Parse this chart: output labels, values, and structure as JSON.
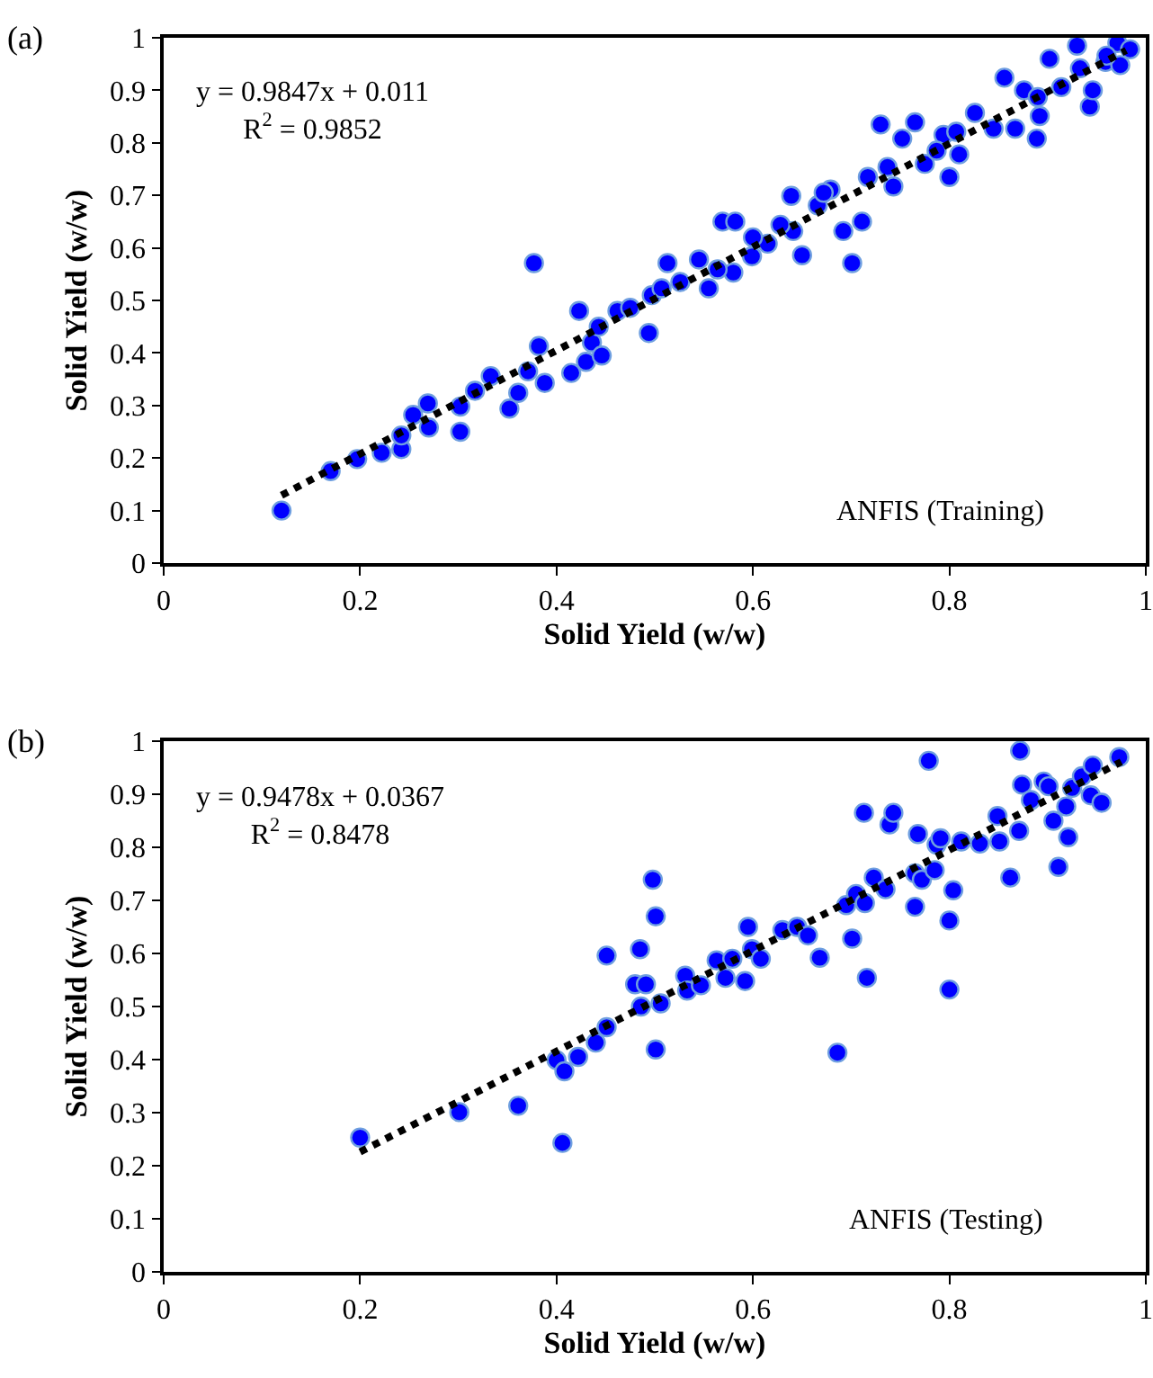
{
  "chart_data": [
    {
      "type": "scatter",
      "title": "(a)",
      "xlabel": "Solid Yield (w/w)",
      "ylabel": "Solid Yield (w/w)",
      "xlim": [
        0,
        1
      ],
      "ylim": [
        0,
        1
      ],
      "xticks": [
        0,
        0.2,
        0.4,
        0.6,
        0.8,
        1
      ],
      "yticks": [
        0,
        0.1,
        0.2,
        0.3,
        0.4,
        0.5,
        0.6,
        0.7,
        0.8,
        0.9,
        1
      ],
      "marker": "circle",
      "annotations": [
        "y = 0.9847x + 0.011\nR$^{2}$ = 0.9852",
        "ANFIS (Training)"
      ],
      "series": [
        {
          "color": "#0000ff",
          "x": [
            0.12,
            0.17,
            0.197,
            0.222,
            0.242,
            0.242,
            0.254,
            0.269,
            0.27,
            0.302,
            0.302,
            0.317,
            0.333,
            0.352,
            0.361,
            0.371,
            0.377,
            0.382,
            0.388,
            0.415,
            0.423,
            0.43,
            0.436,
            0.446,
            0.462,
            0.475,
            0.494,
            0.497,
            0.513,
            0.526,
            0.545,
            0.555,
            0.569,
            0.582,
            0.58,
            0.599,
            0.615,
            0.639,
            0.641,
            0.65,
            0.666,
            0.679,
            0.692,
            0.701,
            0.711,
            0.717,
            0.73,
            0.743,
            0.752,
            0.765,
            0.775,
            0.8,
            0.794,
            0.81,
            0.826,
            0.845,
            0.856,
            0.867,
            0.876,
            0.889,
            0.892,
            0.902,
            0.914,
            0.93,
            0.933,
            0.943,
            0.946,
            0.959,
            0.971,
            0.974,
            0.984,
            0.443,
            0.507,
            0.564,
            0.628,
            0.672,
            0.737,
            0.807,
            0.89,
            0.96,
            0.787,
            0.6
          ],
          "values": [
            0.1,
            0.175,
            0.198,
            0.21,
            0.217,
            0.243,
            0.282,
            0.304,
            0.258,
            0.25,
            0.298,
            0.328,
            0.356,
            0.294,
            0.324,
            0.365,
            0.571,
            0.413,
            0.343,
            0.362,
            0.48,
            0.383,
            0.42,
            0.395,
            0.48,
            0.486,
            0.438,
            0.51,
            0.571,
            0.535,
            0.578,
            0.523,
            0.65,
            0.65,
            0.553,
            0.584,
            0.608,
            0.699,
            0.632,
            0.586,
            0.681,
            0.711,
            0.632,
            0.571,
            0.65,
            0.735,
            0.835,
            0.717,
            0.808,
            0.839,
            0.76,
            0.735,
            0.815,
            0.778,
            0.857,
            0.827,
            0.924,
            0.827,
            0.9,
            0.808,
            0.851,
            0.96,
            0.906,
            0.985,
            0.942,
            0.869,
            0.9,
            0.954,
            0.99,
            0.948,
            0.978,
            0.45,
            0.523,
            0.559,
            0.644,
            0.705,
            0.754,
            0.821,
            0.887,
            0.966,
            0.785,
            0.62
          ]
        },
        {
          "type": "line",
          "color": "#000000",
          "line_style": "dotted",
          "marker": "none",
          "x": [
            0.12,
            0.98
          ],
          "values": [
            0.129,
            0.976
          ]
        }
      ]
    },
    {
      "type": "scatter",
      "title": "(b)",
      "xlabel": "Solid Yield (w/w)",
      "ylabel": "Solid Yield (w/w)",
      "xlim": [
        0,
        1
      ],
      "ylim": [
        0,
        1
      ],
      "xticks": [
        0,
        0.2,
        0.4,
        0.6,
        0.8,
        1
      ],
      "yticks": [
        0,
        0.1,
        0.2,
        0.3,
        0.4,
        0.5,
        0.6,
        0.7,
        0.8,
        0.9,
        1
      ],
      "marker": "circle",
      "annotations": [
        "y = 0.9478x + 0.0367\nR$^{2}$ = 0.8478",
        "ANFIS (Testing)"
      ],
      "series": [
        {
          "color": "#0000ff",
          "x": [
            0.2,
            0.301,
            0.361,
            0.406,
            0.4,
            0.408,
            0.422,
            0.44,
            0.451,
            0.451,
            0.48,
            0.485,
            0.491,
            0.486,
            0.498,
            0.501,
            0.506,
            0.501,
            0.531,
            0.533,
            0.547,
            0.563,
            0.572,
            0.579,
            0.592,
            0.595,
            0.599,
            0.608,
            0.63,
            0.645,
            0.656,
            0.668,
            0.686,
            0.695,
            0.701,
            0.705,
            0.713,
            0.714,
            0.716,
            0.723,
            0.735,
            0.739,
            0.743,
            0.765,
            0.765,
            0.768,
            0.772,
            0.779,
            0.785,
            0.787,
            0.791,
            0.8,
            0.8,
            0.804,
            0.812,
            0.831,
            0.849,
            0.851,
            0.862,
            0.871,
            0.872,
            0.874,
            0.883,
            0.896,
            0.901,
            0.906,
            0.911,
            0.919,
            0.921,
            0.925,
            0.935,
            0.944,
            0.946,
            0.955,
            0.973
          ],
          "values": [
            0.253,
            0.301,
            0.313,
            0.243,
            0.399,
            0.378,
            0.405,
            0.432,
            0.461,
            0.596,
            0.542,
            0.608,
            0.542,
            0.5,
            0.739,
            0.67,
            0.506,
            0.419,
            0.558,
            0.53,
            0.54,
            0.587,
            0.554,
            0.59,
            0.548,
            0.65,
            0.608,
            0.59,
            0.644,
            0.65,
            0.634,
            0.592,
            0.413,
            0.691,
            0.628,
            0.712,
            0.865,
            0.695,
            0.554,
            0.743,
            0.721,
            0.843,
            0.865,
            0.688,
            0.751,
            0.825,
            0.739,
            0.963,
            0.757,
            0.805,
            0.817,
            0.662,
            0.532,
            0.719,
            0.811,
            0.807,
            0.859,
            0.811,
            0.743,
            0.831,
            0.982,
            0.918,
            0.889,
            0.924,
            0.915,
            0.85,
            0.763,
            0.877,
            0.819,
            0.912,
            0.934,
            0.898,
            0.954,
            0.884,
            0.97
          ]
        },
        {
          "type": "line",
          "color": "#000000",
          "line_style": "dotted",
          "marker": "none",
          "x": [
            0.2,
            0.975
          ],
          "values": [
            0.226,
            0.961
          ]
        }
      ]
    }
  ]
}
